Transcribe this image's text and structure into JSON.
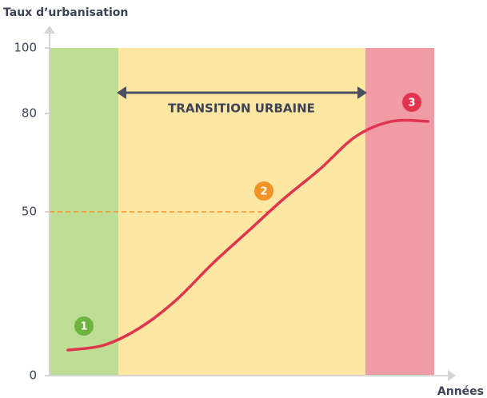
{
  "chart_data": {
    "type": "line",
    "ylabel": "Taux d’urbanisation",
    "xlabel": "Années",
    "annotation": "TRANSITION URBAINE",
    "markers": [
      "1",
      "2",
      "3"
    ],
    "ylim": [
      0,
      100
    ],
    "yticks": [
      0,
      50,
      80,
      100
    ],
    "hline": 50,
    "hline_color": "#f39325",
    "series": [
      {
        "color": "#e0344f",
        "values": [
          7.8,
          9.3,
          14.6,
          23,
          34,
          44,
          54,
          63,
          73,
          77.6,
          77.6
        ]
      }
    ]
  }
}
